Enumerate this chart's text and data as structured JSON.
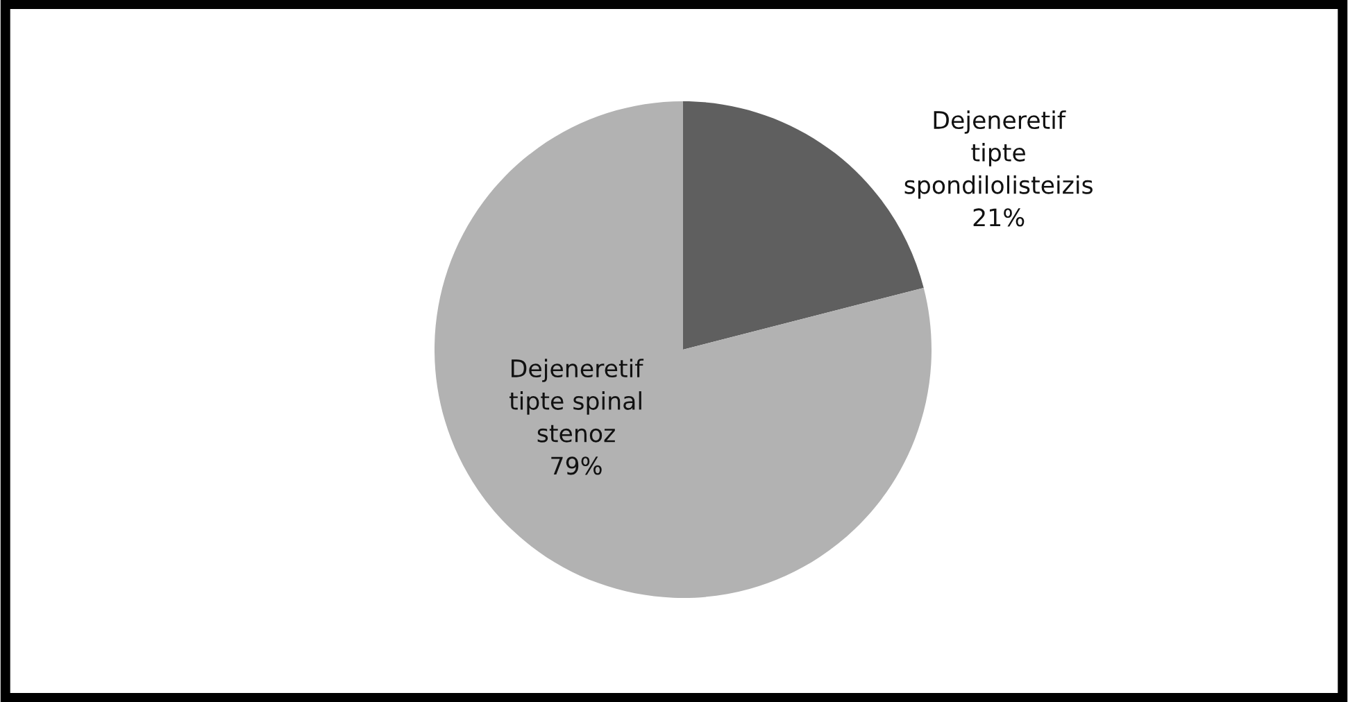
{
  "chart_data": {
    "type": "pie",
    "categories": [
      "Dejeneretif\ntipte\nspondilolisteizis",
      "Dejeneretif\ntipte spinal\nstenoz"
    ],
    "values": [
      21,
      79
    ],
    "colors": [
      "#5f5f5f",
      "#b2b2b2"
    ],
    "value_labels": [
      "21%",
      "79%"
    ],
    "legend": false
  }
}
